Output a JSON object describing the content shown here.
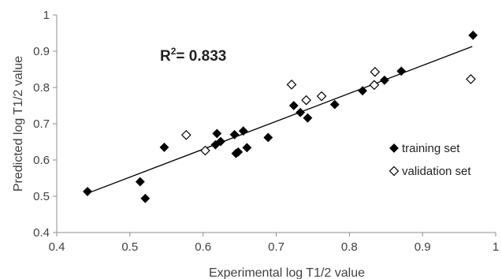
{
  "chart_data": {
    "type": "scatter",
    "xlabel": "Experimental log T1/2 value",
    "ylabel": "Predicted log T1/2 value",
    "xlim": [
      0.4,
      1
    ],
    "ylim": [
      0.4,
      1
    ],
    "x_ticks": [
      0.4,
      0.5,
      0.6,
      0.7,
      0.8,
      0.9,
      1
    ],
    "y_ticks": [
      0.4,
      0.5,
      0.6,
      0.7,
      0.8,
      0.9,
      1
    ],
    "x_tick_labels": [
      "0.4",
      "0.5",
      "0.6",
      "0.7",
      "0.8",
      "0.9",
      "1"
    ],
    "y_tick_labels": [
      "0.4",
      "0.5",
      "0.6",
      "0.7",
      "0.8",
      "0.9",
      "1"
    ],
    "grid": false,
    "legend_position": "right",
    "annotation": {
      "r2_prefix": "R",
      "r2_sup": "2",
      "r2_text": "= 0.833"
    },
    "trendline": {
      "x": [
        0.442,
        0.968
      ],
      "y": [
        0.508,
        0.913
      ]
    },
    "series": [
      {
        "name": "training set",
        "marker": "filled-diamond",
        "color": "#000000",
        "points": [
          [
            0.442,
            0.513
          ],
          [
            0.514,
            0.54
          ],
          [
            0.521,
            0.494
          ],
          [
            0.547,
            0.635
          ],
          [
            0.617,
            0.642
          ],
          [
            0.619,
            0.673
          ],
          [
            0.624,
            0.651
          ],
          [
            0.643,
            0.67
          ],
          [
            0.645,
            0.618
          ],
          [
            0.648,
            0.622
          ],
          [
            0.655,
            0.68
          ],
          [
            0.66,
            0.634
          ],
          [
            0.689,
            0.662
          ],
          [
            0.724,
            0.75
          ],
          [
            0.733,
            0.731
          ],
          [
            0.743,
            0.716
          ],
          [
            0.78,
            0.753
          ],
          [
            0.818,
            0.791
          ],
          [
            0.848,
            0.82
          ],
          [
            0.871,
            0.845
          ],
          [
            0.969,
            0.944
          ]
        ]
      },
      {
        "name": "validation set",
        "marker": "open-diamond",
        "color": "#000000",
        "points": [
          [
            0.577,
            0.669
          ],
          [
            0.603,
            0.626
          ],
          [
            0.721,
            0.808
          ],
          [
            0.741,
            0.765
          ],
          [
            0.762,
            0.776
          ],
          [
            0.834,
            0.807
          ],
          [
            0.835,
            0.843
          ],
          [
            0.966,
            0.823
          ]
        ]
      }
    ]
  }
}
